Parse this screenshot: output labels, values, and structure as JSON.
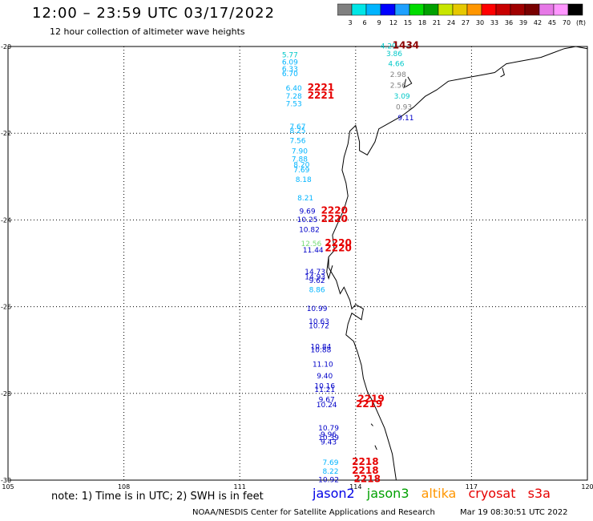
{
  "header": {
    "title": "12:00 – 23:59 UTC 03/17/2022",
    "subtitle": "12 hour collection of altimeter wave heights"
  },
  "colorbar": {
    "colors": [
      "#808080",
      "#00e6e6",
      "#00b4ff",
      "#0000ff",
      "#1ea0ff",
      "#00dc00",
      "#00a000",
      "#c8e600",
      "#e6c800",
      "#ff9600",
      "#ff0000",
      "#c80000",
      "#a00000",
      "#780000",
      "#e678e6",
      "#ff96ff",
      "#000000"
    ],
    "labels": [
      "3",
      "6",
      "9",
      "12",
      "15",
      "18",
      "21",
      "24",
      "27",
      "30",
      "33",
      "36",
      "39",
      "42",
      "45",
      "70",
      "(ft)"
    ]
  },
  "axes": {
    "lon_ticks": [
      {
        "v": 105,
        "label": "105"
      },
      {
        "v": 108,
        "label": "108"
      },
      {
        "v": 111,
        "label": "111"
      },
      {
        "v": 114,
        "label": "114"
      },
      {
        "v": 117,
        "label": "117"
      },
      {
        "v": 120,
        "label": "120"
      }
    ],
    "lat_ticks": [
      {
        "v": -20,
        "label": "-20"
      },
      {
        "v": -22,
        "label": "-22"
      },
      {
        "v": -24,
        "label": "-24"
      },
      {
        "v": -26,
        "label": "-26"
      },
      {
        "v": -28,
        "label": "-28"
      },
      {
        "v": -30,
        "label": "-30"
      }
    ]
  },
  "observations": [
    {
      "t": "4.29",
      "lon": 114.85,
      "lat": -20.05,
      "c": "#00c8c8"
    },
    {
      "t": "3.86",
      "lon": 115.0,
      "lat": -20.22,
      "c": "#00c8c8"
    },
    {
      "t": "4.66",
      "lon": 115.05,
      "lat": -20.45,
      "c": "#00c8c8"
    },
    {
      "t": "2.98",
      "lon": 115.1,
      "lat": -20.7,
      "c": "#808080"
    },
    {
      "t": "2.56",
      "lon": 115.1,
      "lat": -20.95,
      "c": "#808080"
    },
    {
      "t": "3.09",
      "lon": 115.2,
      "lat": -21.2,
      "c": "#00c8c8"
    },
    {
      "t": "0.93",
      "lon": 115.25,
      "lat": -21.45,
      "c": "#808080"
    },
    {
      "t": "9.11",
      "lon": 115.3,
      "lat": -21.7,
      "c": "#0000c8"
    },
    {
      "t": "5.77",
      "lon": 112.3,
      "lat": -20.25,
      "c": "#00c8c8"
    },
    {
      "t": "6.09",
      "lon": 112.3,
      "lat": -20.42,
      "c": "#00b4ff"
    },
    {
      "t": "6.33",
      "lon": 112.3,
      "lat": -20.57,
      "c": "#00b4ff"
    },
    {
      "t": "6.70",
      "lon": 112.3,
      "lat": -20.68,
      "c": "#00b4ff"
    },
    {
      "t": "6.40",
      "lon": 112.4,
      "lat": -21.02,
      "c": "#00b4ff"
    },
    {
      "t": "7.28",
      "lon": 112.4,
      "lat": -21.2,
      "c": "#00b4ff"
    },
    {
      "t": "7.53",
      "lon": 112.4,
      "lat": -21.38,
      "c": "#00b4ff"
    },
    {
      "t": "7.67",
      "lon": 112.5,
      "lat": -21.9,
      "c": "#00b4ff"
    },
    {
      "t": "8.25",
      "lon": 112.5,
      "lat": -22.0,
      "c": "#00b4ff"
    },
    {
      "t": "7.56",
      "lon": 112.5,
      "lat": -22.23,
      "c": "#00b4ff"
    },
    {
      "t": "7.90",
      "lon": 112.55,
      "lat": -22.47,
      "c": "#00b4ff"
    },
    {
      "t": "7.88",
      "lon": 112.55,
      "lat": -22.65,
      "c": "#00b4ff"
    },
    {
      "t": "8.20",
      "lon": 112.6,
      "lat": -22.78,
      "c": "#00b4ff"
    },
    {
      "t": "7.69",
      "lon": 112.6,
      "lat": -22.9,
      "c": "#00b4ff"
    },
    {
      "t": "8.18",
      "lon": 112.65,
      "lat": -23.12,
      "c": "#00b4ff"
    },
    {
      "t": "8.21",
      "lon": 112.7,
      "lat": -23.55,
      "c": "#00b4ff"
    },
    {
      "t": "9.69",
      "lon": 112.75,
      "lat": -23.85,
      "c": "#0000c8"
    },
    {
      "t": "10.25",
      "lon": 112.75,
      "lat": -24.05,
      "c": "#0000c8"
    },
    {
      "t": "10.82",
      "lon": 112.8,
      "lat": -24.28,
      "c": "#0000c8"
    },
    {
      "t": "12.56",
      "lon": 112.85,
      "lat": -24.6,
      "c": "#78dc78"
    },
    {
      "t": "11.44",
      "lon": 112.9,
      "lat": -24.75,
      "c": "#0000c8"
    },
    {
      "t": "14.73",
      "lon": 112.95,
      "lat": -25.25,
      "c": "#0000c8"
    },
    {
      "t": "14.93",
      "lon": 112.95,
      "lat": -25.37,
      "c": "#0000c8"
    },
    {
      "t": "9.62",
      "lon": 113.0,
      "lat": -25.45,
      "c": "#0000c8"
    },
    {
      "t": "8.86",
      "lon": 113.0,
      "lat": -25.67,
      "c": "#00b4ff"
    },
    {
      "t": "10.99",
      "lon": 113.0,
      "lat": -26.1,
      "c": "#0000c8"
    },
    {
      "t": "10.63",
      "lon": 113.05,
      "lat": -26.4,
      "c": "#0000c8"
    },
    {
      "t": "10.72",
      "lon": 113.05,
      "lat": -26.5,
      "c": "#0000c8"
    },
    {
      "t": "10.84",
      "lon": 113.1,
      "lat": -26.98,
      "c": "#0000c8"
    },
    {
      "t": "10.88",
      "lon": 113.1,
      "lat": -27.05,
      "c": "#0000c8"
    },
    {
      "t": "11.10",
      "lon": 113.15,
      "lat": -27.38,
      "c": "#0000c8"
    },
    {
      "t": "9.40",
      "lon": 113.2,
      "lat": -27.65,
      "c": "#0000c8"
    },
    {
      "t": "10.16",
      "lon": 113.2,
      "lat": -27.88,
      "c": "#0000c8"
    },
    {
      "t": "11.21",
      "lon": 113.2,
      "lat": -27.97,
      "c": "#0000c8"
    },
    {
      "t": "9.67",
      "lon": 113.25,
      "lat": -28.2,
      "c": "#0000c8"
    },
    {
      "t": "10.24",
      "lon": 113.25,
      "lat": -28.32,
      "c": "#0000c8"
    },
    {
      "t": "10.79",
      "lon": 113.3,
      "lat": -28.85,
      "c": "#0000c8"
    },
    {
      "t": "9.96",
      "lon": 113.3,
      "lat": -29.0,
      "c": "#0000c8"
    },
    {
      "t": "10.39",
      "lon": 113.3,
      "lat": -29.08,
      "c": "#0000c8"
    },
    {
      "t": "9.43",
      "lon": 113.3,
      "lat": -29.18,
      "c": "#0000c8"
    },
    {
      "t": "7.69",
      "lon": 113.35,
      "lat": -29.65,
      "c": "#00b4ff"
    },
    {
      "t": "8.22",
      "lon": 113.35,
      "lat": -29.85,
      "c": "#00b4ff"
    },
    {
      "t": "10.92",
      "lon": 113.3,
      "lat": -30.05,
      "c": "#0000c8"
    }
  ],
  "track_labels": [
    {
      "t": "1434",
      "lon": 115.3,
      "lat": -20.05,
      "c": "#8c0000"
    },
    {
      "t": "2221",
      "lon": 113.1,
      "lat": -21.02,
      "c": "#e60000"
    },
    {
      "t": "2221",
      "lon": 113.1,
      "lat": -21.2,
      "c": "#e60000"
    },
    {
      "t": "2220",
      "lon": 113.45,
      "lat": -23.85,
      "c": "#e60000"
    },
    {
      "t": "2220",
      "lon": 113.45,
      "lat": -24.05,
      "c": "#e60000"
    },
    {
      "t": "2220",
      "lon": 113.55,
      "lat": -24.6,
      "c": "#e60000"
    },
    {
      "t": "2220",
      "lon": 113.55,
      "lat": -24.72,
      "c": "#e60000"
    },
    {
      "t": "2219",
      "lon": 114.4,
      "lat": -28.2,
      "c": "#e60000"
    },
    {
      "t": "2219",
      "lon": 114.35,
      "lat": -28.32,
      "c": "#e60000"
    },
    {
      "t": "2218",
      "lon": 114.25,
      "lat": -29.65,
      "c": "#e60000"
    },
    {
      "t": "2218",
      "lon": 114.25,
      "lat": -29.85,
      "c": "#e60000"
    },
    {
      "t": "2218",
      "lon": 114.3,
      "lat": -30.05,
      "c": "#e60000"
    }
  ],
  "coastline": [
    [
      [
        120.0,
        -20.05
      ],
      [
        119.7,
        -20.0
      ],
      [
        119.4,
        -20.05
      ],
      [
        119.1,
        -20.15
      ],
      [
        118.8,
        -20.25
      ],
      [
        118.5,
        -20.3
      ],
      [
        118.2,
        -20.35
      ],
      [
        117.9,
        -20.4
      ],
      [
        117.6,
        -20.6
      ],
      [
        117.3,
        -20.65
      ],
      [
        117.0,
        -20.7
      ],
      [
        116.7,
        -20.75
      ],
      [
        116.4,
        -20.8
      ],
      [
        116.1,
        -21.0
      ],
      [
        115.8,
        -21.15
      ],
      [
        115.5,
        -21.4
      ],
      [
        115.2,
        -21.6
      ],
      [
        114.9,
        -21.75
      ],
      [
        114.6,
        -21.9
      ],
      [
        114.5,
        -22.2
      ],
      [
        114.3,
        -22.5
      ],
      [
        114.1,
        -22.4
      ],
      [
        114.1,
        -22.2
      ],
      [
        114.0,
        -21.82
      ],
      [
        113.85,
        -21.95
      ],
      [
        113.8,
        -22.25
      ],
      [
        113.7,
        -22.55
      ],
      [
        113.65,
        -22.85
      ],
      [
        113.75,
        -23.15
      ],
      [
        113.8,
        -23.45
      ],
      [
        113.7,
        -23.75
      ],
      [
        113.55,
        -24.05
      ],
      [
        113.4,
        -24.35
      ],
      [
        113.45,
        -24.7
      ],
      [
        113.3,
        -24.85
      ],
      [
        113.3,
        -25.1
      ],
      [
        113.5,
        -25.4
      ],
      [
        113.6,
        -25.7
      ],
      [
        113.7,
        -25.55
      ],
      [
        113.85,
        -25.85
      ],
      [
        113.9,
        -26.05
      ],
      [
        114.0,
        -25.95
      ],
      [
        114.2,
        -26.05
      ],
      [
        114.15,
        -26.3
      ],
      [
        113.9,
        -26.15
      ],
      [
        113.8,
        -26.4
      ],
      [
        113.75,
        -26.65
      ],
      [
        113.95,
        -26.8
      ],
      [
        114.05,
        -27.05
      ],
      [
        114.15,
        -27.35
      ],
      [
        114.2,
        -27.65
      ],
      [
        114.3,
        -27.95
      ],
      [
        114.45,
        -28.2
      ],
      [
        114.6,
        -28.5
      ],
      [
        114.75,
        -28.8
      ],
      [
        114.85,
        -29.1
      ],
      [
        114.95,
        -29.4
      ],
      [
        115.0,
        -29.7
      ],
      [
        115.05,
        -30.0
      ]
    ],
    [
      [
        113.3,
        -24.85
      ],
      [
        113.25,
        -25.2
      ],
      [
        113.3,
        -25.35
      ],
      [
        113.4,
        -25.05
      ]
    ],
    [
      [
        115.35,
        -20.7
      ],
      [
        115.45,
        -20.85
      ],
      [
        115.25,
        -20.95
      ],
      [
        115.3,
        -20.75
      ]
    ],
    [
      [
        117.8,
        -20.5
      ],
      [
        117.85,
        -20.65
      ],
      [
        117.75,
        -20.7
      ]
    ],
    [
      [
        114.4,
        -28.7
      ],
      [
        114.45,
        -28.75
      ]
    ],
    [
      [
        114.5,
        -29.2
      ],
      [
        114.55,
        -29.3
      ]
    ]
  ],
  "note": "note: 1) Time is in UTC; 2) SWH is in feet",
  "legend": [
    {
      "label": "jason2",
      "color": "#0000e6"
    },
    {
      "label": "jason3",
      "color": "#00a000"
    },
    {
      "label": "altika",
      "color": "#ff9600"
    },
    {
      "label": "cryosat",
      "color": "#e60000"
    },
    {
      "label": "s3a",
      "color": "#e60000"
    }
  ],
  "footer": {
    "agency": "NOAA/NESDIS Center for Satellite Applications and Research",
    "timestamp": "Mar 19 08:30:51 UTC 2022"
  }
}
